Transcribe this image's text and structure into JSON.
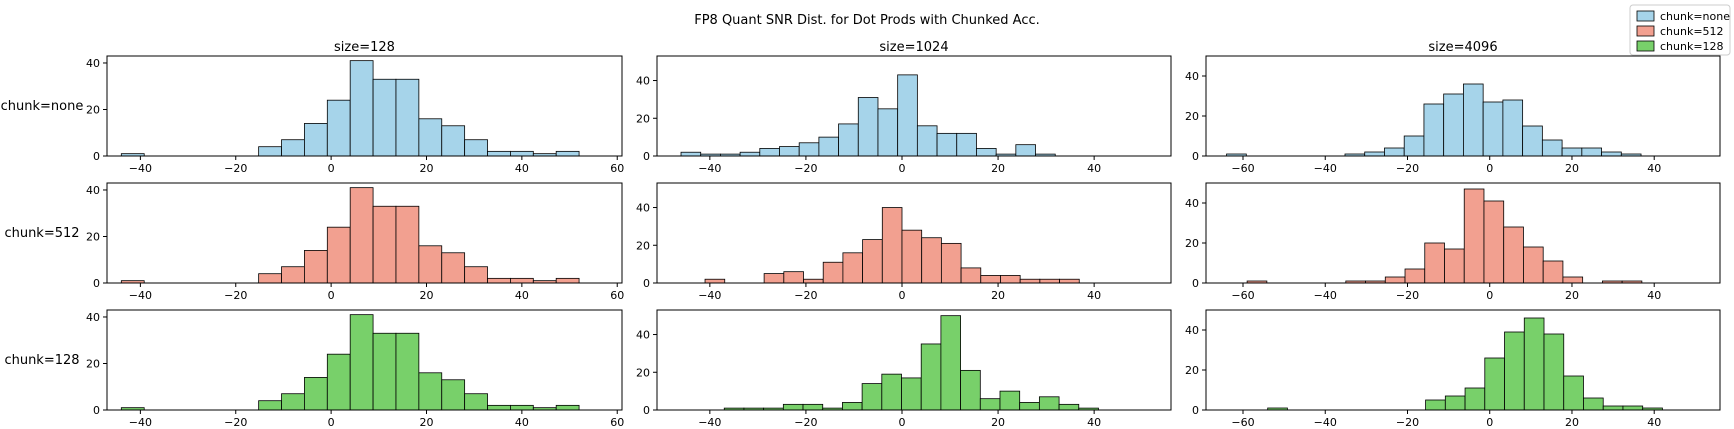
{
  "chart_data": {
    "type": "bar",
    "title": "FP8 Quant SNR Dist. for Dot Prods with Chunked Acc.",
    "columns": [
      "size=128",
      "size=1024",
      "size=4096"
    ],
    "rows": [
      "chunk=none",
      "chunk=512",
      "chunk=128"
    ],
    "legend": {
      "placement": "top-right",
      "entries": [
        {
          "label": "chunk=none",
          "color": "#a6d4ea"
        },
        {
          "label": "chunk=512",
          "color": "#f2a090"
        },
        {
          "label": "chunk=128",
          "color": "#78d06a"
        }
      ]
    },
    "grid": false,
    "panels": [
      {
        "row": "chunk=none",
        "col": "size=128",
        "xlim": [
          -47,
          61
        ],
        "ylim": [
          0,
          43
        ],
        "xticks": [
          -40,
          -20,
          0,
          20,
          40,
          60
        ],
        "yticks": [
          0,
          20,
          40
        ],
        "bin_start": -44,
        "bin_width": 4.8,
        "counts": [
          1,
          0,
          0,
          0,
          0,
          0,
          4,
          7,
          14,
          24,
          41,
          33,
          33,
          16,
          13,
          7,
          2,
          2,
          1,
          2
        ]
      },
      {
        "row": "chunk=none",
        "col": "size=1024",
        "xlim": [
          -51,
          56
        ],
        "ylim": [
          0,
          53
        ],
        "xticks": [
          -40,
          -20,
          0,
          20,
          40
        ],
        "yticks": [
          0,
          20,
          40
        ],
        "bin_start": -46,
        "bin_width": 4.1,
        "counts": [
          2,
          1,
          1,
          2,
          4,
          5,
          7,
          10,
          17,
          31,
          25,
          43,
          16,
          12,
          12,
          4,
          1,
          6,
          1
        ]
      },
      {
        "row": "chunk=none",
        "col": "size=4096",
        "xlim": [
          -69,
          56
        ],
        "ylim": [
          0,
          50
        ],
        "xticks": [
          -60,
          -40,
          -20,
          0,
          20,
          40
        ],
        "yticks": [
          0,
          20,
          40
        ],
        "bin_start": -64,
        "bin_width": 4.8,
        "counts": [
          1,
          0,
          0,
          0,
          0,
          0,
          1,
          2,
          4,
          10,
          26,
          31,
          36,
          27,
          28,
          15,
          8,
          4,
          4,
          2,
          1
        ]
      },
      {
        "row": "chunk=512",
        "col": "size=128",
        "xlim": [
          -47,
          61
        ],
        "ylim": [
          0,
          43
        ],
        "xticks": [
          -40,
          -20,
          0,
          20,
          40,
          60
        ],
        "yticks": [
          0,
          20,
          40
        ],
        "bin_start": -44,
        "bin_width": 4.8,
        "counts": [
          1,
          0,
          0,
          0,
          0,
          0,
          4,
          7,
          14,
          24,
          41,
          33,
          33,
          16,
          13,
          7,
          2,
          2,
          1,
          2
        ]
      },
      {
        "row": "chunk=512",
        "col": "size=1024",
        "xlim": [
          -51,
          56
        ],
        "ylim": [
          0,
          53
        ],
        "xticks": [
          -40,
          -20,
          0,
          20,
          40
        ],
        "yticks": [
          0,
          20,
          40
        ],
        "bin_start": -41,
        "bin_width": 4.1,
        "counts": [
          2,
          0,
          0,
          5,
          6,
          2,
          11,
          16,
          23,
          40,
          28,
          24,
          21,
          8,
          4,
          4,
          2,
          2,
          2
        ]
      },
      {
        "row": "chunk=512",
        "col": "size=4096",
        "xlim": [
          -69,
          56
        ],
        "ylim": [
          0,
          50
        ],
        "xticks": [
          -60,
          -40,
          -20,
          0,
          20,
          40
        ],
        "yticks": [
          0,
          20,
          40
        ],
        "bin_start": -59,
        "bin_width": 4.8,
        "counts": [
          1,
          0,
          0,
          0,
          0,
          1,
          1,
          3,
          7,
          20,
          17,
          47,
          41,
          28,
          18,
          11,
          3,
          0,
          1,
          1
        ]
      },
      {
        "row": "chunk=128",
        "col": "size=128",
        "xlim": [
          -47,
          61
        ],
        "ylim": [
          0,
          43
        ],
        "xticks": [
          -40,
          -20,
          0,
          20,
          40,
          60
        ],
        "yticks": [
          0,
          20,
          40
        ],
        "bin_start": -44,
        "bin_width": 4.8,
        "counts": [
          1,
          0,
          0,
          0,
          0,
          0,
          4,
          7,
          14,
          24,
          41,
          33,
          33,
          16,
          13,
          7,
          2,
          2,
          1,
          2
        ]
      },
      {
        "row": "chunk=128",
        "col": "size=1024",
        "xlim": [
          -51,
          56
        ],
        "ylim": [
          0,
          53
        ],
        "xticks": [
          -40,
          -20,
          0,
          20,
          40
        ],
        "yticks": [
          0,
          20,
          40
        ],
        "bin_start": -37,
        "bin_width": 4.1,
        "counts": [
          1,
          1,
          1,
          3,
          3,
          1,
          4,
          14,
          19,
          17,
          35,
          50,
          21,
          6,
          10,
          4,
          7,
          3,
          1
        ]
      },
      {
        "row": "chunk=128",
        "col": "size=4096",
        "xlim": [
          -69,
          56
        ],
        "ylim": [
          0,
          50
        ],
        "xticks": [
          -60,
          -40,
          -20,
          0,
          20,
          40
        ],
        "yticks": [
          0,
          20,
          40
        ],
        "bin_start": -54,
        "bin_width": 4.8,
        "counts": [
          1,
          0,
          0,
          0,
          0,
          0,
          0,
          0,
          5,
          7,
          11,
          26,
          39,
          46,
          38,
          17,
          6,
          2,
          2,
          1
        ]
      }
    ]
  }
}
